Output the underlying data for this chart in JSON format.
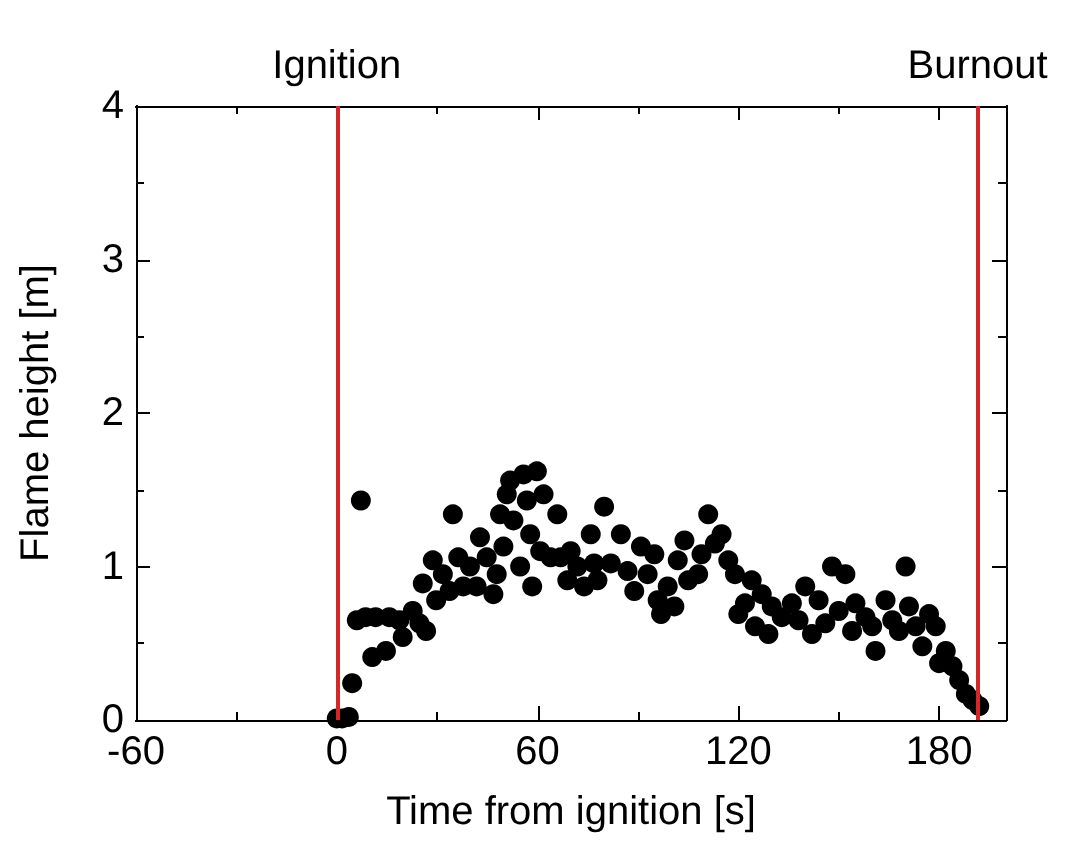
{
  "chart_data": {
    "type": "scatter",
    "xlabel": "Time from ignition [s]",
    "ylabel": "Flame height [m]",
    "xlim": [
      -60,
      200
    ],
    "xticks": [
      -60,
      0,
      60,
      120,
      180
    ],
    "ylim": [
      0,
      4
    ],
    "yticks": [
      0,
      1,
      2,
      3,
      4
    ],
    "grid": false,
    "marker": "circle",
    "ref_lines": [
      {
        "axis": "x",
        "value": 0,
        "label": "Ignition",
        "color": "#d62728",
        "line_style": "solid"
      },
      {
        "axis": "x",
        "value": 191.5,
        "label": "Burnout",
        "color": "#d62728",
        "line_style": "solid"
      }
    ],
    "series": [
      {
        "color": "#000000",
        "x": [
          0,
          1.6,
          3.6,
          4.6,
          7.2,
          6,
          8.6,
          11.6,
          10.6,
          14.7,
          15.7,
          18.7,
          19.7,
          22.7,
          24.7,
          26.7,
          25.7,
          28.7,
          29.7,
          31.7,
          33.7,
          34.7,
          36.3,
          37.8,
          39.8,
          41.8,
          42.8,
          44.8,
          46.8,
          47.8,
          48.8,
          49.8,
          50.8,
          51.8,
          52.8,
          54.8,
          55.8,
          56.8,
          57.8,
          58.4,
          59.8,
          60.8,
          61.8,
          63.9,
          65.9,
          66.9,
          68.9,
          69.9,
          71.9,
          73.9,
          75.9,
          76.9,
          77.9,
          79.9,
          81.9,
          84.9,
          86.9,
          88.9,
          90.9,
          92.9,
          94.9,
          95.9,
          96.9,
          98.9,
          100.9,
          101.9,
          103.9,
          105,
          108,
          109,
          111,
          113,
          115,
          117,
          119,
          120,
          122,
          124,
          125,
          127,
          129,
          130,
          133,
          136,
          138,
          140,
          142,
          144,
          146,
          148,
          150,
          152,
          154,
          155,
          158,
          160,
          161,
          164,
          166,
          168,
          170,
          171,
          173,
          175,
          177,
          179,
          180,
          182,
          184,
          186,
          188,
          190,
          192
        ],
        "values": [
          0.01,
          0.01,
          0.02,
          0.24,
          1.43,
          0.65,
          0.67,
          0.67,
          0.41,
          0.45,
          0.67,
          0.65,
          0.54,
          0.71,
          0.63,
          0.58,
          0.89,
          1.04,
          0.78,
          0.95,
          0.84,
          1.34,
          1.06,
          0.87,
          1.0,
          0.87,
          1.19,
          1.06,
          0.82,
          0.95,
          1.34,
          1.13,
          1.47,
          1.56,
          1.3,
          1.0,
          1.6,
          1.43,
          1.21,
          0.87,
          1.62,
          1.1,
          1.47,
          1.06,
          1.34,
          1.06,
          0.91,
          1.1,
          1.0,
          0.87,
          1.21,
          1.02,
          0.91,
          1.39,
          1.02,
          1.21,
          0.97,
          0.84,
          1.13,
          0.95,
          1.08,
          0.78,
          0.69,
          0.87,
          0.74,
          1.04,
          1.17,
          0.91,
          0.95,
          1.08,
          1.34,
          1.15,
          1.21,
          1.04,
          0.95,
          0.69,
          0.76,
          0.91,
          0.61,
          0.82,
          0.56,
          0.74,
          0.67,
          0.76,
          0.65,
          0.87,
          0.56,
          0.78,
          0.63,
          1.0,
          0.71,
          0.95,
          0.58,
          0.76,
          0.67,
          0.61,
          0.45,
          0.78,
          0.65,
          0.58,
          1.0,
          0.74,
          0.61,
          0.48,
          0.69,
          0.61,
          0.37,
          0.45,
          0.35,
          0.26,
          0.17,
          0.13,
          0.09
        ]
      }
    ]
  }
}
